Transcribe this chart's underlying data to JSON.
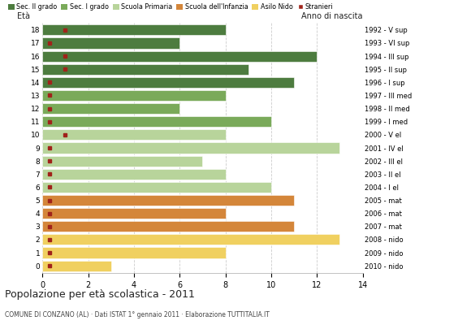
{
  "ages": [
    18,
    17,
    16,
    15,
    14,
    13,
    12,
    11,
    10,
    9,
    8,
    7,
    6,
    5,
    4,
    3,
    2,
    1,
    0
  ],
  "anno_nascita": [
    "1992 - V sup",
    "1993 - VI sup",
    "1994 - III sup",
    "1995 - II sup",
    "1996 - I sup",
    "1997 - III med",
    "1998 - II med",
    "1999 - I med",
    "2000 - V el",
    "2001 - IV el",
    "2002 - III el",
    "2003 - II el",
    "2004 - I el",
    "2005 - mat",
    "2006 - mat",
    "2007 - mat",
    "2008 - nido",
    "2009 - nido",
    "2010 - nido"
  ],
  "bar_values": [
    8,
    6,
    12,
    9,
    11,
    8,
    6,
    10,
    8,
    13,
    7,
    8,
    10,
    11,
    8,
    11,
    13,
    8,
    3
  ],
  "stranieri_x": [
    1,
    0.3,
    1,
    1,
    0.3,
    0.3,
    0.3,
    0.3,
    1,
    0.3,
    0.3,
    0.3,
    0.3,
    0.3,
    0.3,
    0.3,
    0.3,
    0.3,
    0.3
  ],
  "bar_colors": [
    "#4d7c3f",
    "#4d7c3f",
    "#4d7c3f",
    "#4d7c3f",
    "#4d7c3f",
    "#7aaa5a",
    "#7aaa5a",
    "#7aaa5a",
    "#b8d49b",
    "#b8d49b",
    "#b8d49b",
    "#b8d49b",
    "#b8d49b",
    "#d4863a",
    "#d4863a",
    "#d4863a",
    "#f0d060",
    "#f0d060",
    "#f0d060"
  ],
  "legend_labels": [
    "Sec. II grado",
    "Sec. I grado",
    "Scuola Primaria",
    "Scuola dell'Infanzia",
    "Asilo Nido",
    "Stranieri"
  ],
  "legend_colors": [
    "#4d7c3f",
    "#7aaa5a",
    "#b8d49b",
    "#d4863a",
    "#f0d060",
    "#a0231a"
  ],
  "title": "Popolazione per età scolastica - 2011",
  "subtitle": "COMUNE DI CONZANO (AL) · Dati ISTAT 1° gennaio 2011 · Elaborazione TUTTITALIA.IT",
  "eta_label": "Età",
  "anno_label": "Anno di nascita",
  "xlim": [
    0,
    14
  ],
  "xticks": [
    0,
    2,
    4,
    6,
    8,
    10,
    12,
    14
  ],
  "stranieri_color": "#a0231a",
  "background_color": "#ffffff",
  "bar_height": 0.82,
  "grid_color": "#cccccc"
}
